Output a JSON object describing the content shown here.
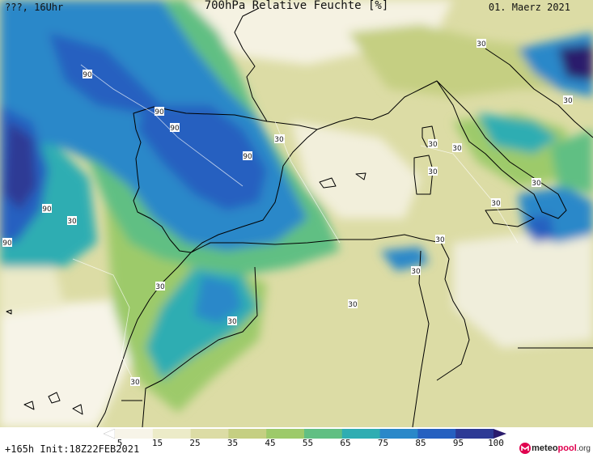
{
  "header": {
    "left": "???, 16Uhr",
    "title": "700hPa Relative Feuchte [%]",
    "date": "01. Maerz 2021"
  },
  "footer": {
    "run": "+165h Init:18Z22FEB2021",
    "logo_meteo": "meteo",
    "logo_pool": "pool",
    "logo_org": ".org"
  },
  "legend": {
    "ticks": [
      "5",
      "15",
      "25",
      "35",
      "45",
      "55",
      "65",
      "75",
      "85",
      "95",
      "100"
    ],
    "colors": [
      "#f7f4e8",
      "#ecebc8",
      "#dcdca5",
      "#c5cf82",
      "#9dca6a",
      "#61bf83",
      "#2fadb2",
      "#2a88c9",
      "#2660c0",
      "#2d3a95",
      "#2a1b6c"
    ]
  },
  "contour_labels": [
    {
      "text": "90"
    },
    {
      "text": "90"
    },
    {
      "text": "90"
    },
    {
      "text": "90"
    },
    {
      "text": "90"
    },
    {
      "text": "90"
    },
    {
      "text": "30"
    },
    {
      "text": "30"
    },
    {
      "text": "30"
    },
    {
      "text": "30"
    },
    {
      "text": "30"
    },
    {
      "text": "30"
    },
    {
      "text": "30"
    },
    {
      "text": "30"
    },
    {
      "text": "30"
    },
    {
      "text": "30"
    },
    {
      "text": "30"
    },
    {
      "text": "30"
    },
    {
      "text": "30"
    },
    {
      "text": "30"
    },
    {
      "text": "30"
    },
    {
      "text": "30"
    }
  ]
}
